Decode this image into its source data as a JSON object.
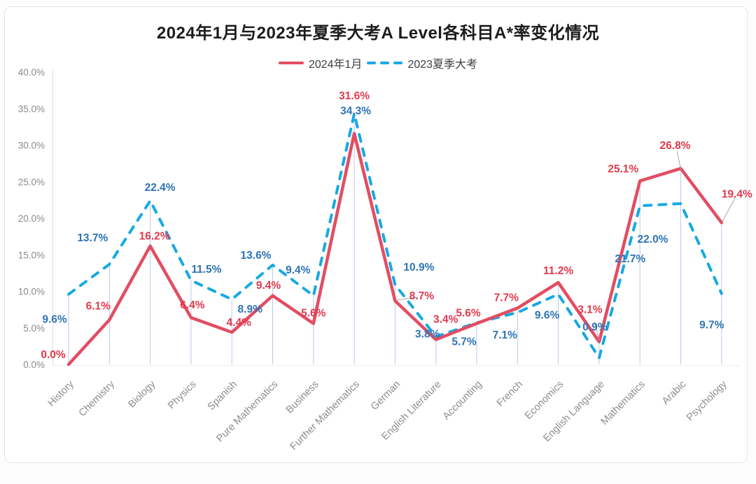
{
  "chart_data": {
    "type": "line",
    "title": "2024年1月与2023年夏季大考A Level各科目A*率变化情况",
    "categories": [
      "History",
      "Chemistry",
      "Biology",
      "Physics",
      "Spanish",
      "Pure Mathematics",
      "Business",
      "Further Mathematics",
      "German",
      "English Literature",
      "Accounting",
      "French",
      "Economics",
      "English Language",
      "Mathematics",
      "Arabic",
      "Psychology"
    ],
    "series": [
      {
        "name": "2024年1月",
        "style": "solid",
        "color": "#e24d62",
        "label_color": "#e03a4e",
        "values": [
          0.0,
          6.1,
          16.2,
          6.4,
          4.4,
          9.4,
          5.6,
          31.6,
          8.7,
          3.4,
          5.6,
          7.7,
          11.2,
          3.1,
          25.1,
          26.8,
          19.4
        ]
      },
      {
        "name": "2023夏季大考",
        "style": "dashed",
        "color": "#17a8e5",
        "label_color": "#2e74b5",
        "values": [
          9.6,
          13.7,
          22.4,
          11.5,
          8.9,
          13.6,
          9.4,
          34.3,
          10.9,
          3.8,
          5.7,
          7.1,
          9.6,
          0.9,
          21.7,
          22.0,
          9.7
        ]
      }
    ],
    "ylim": [
      0,
      40
    ],
    "ytick_step": 5,
    "ytick_suffix": "%",
    "value_suffix": "%",
    "grid": "none",
    "drop_lines": true,
    "legend_position": "top",
    "axis_color": "#dcdcdc",
    "drop_line_color": "#a9bce4",
    "leader_line_color": "#a8a8a8"
  }
}
